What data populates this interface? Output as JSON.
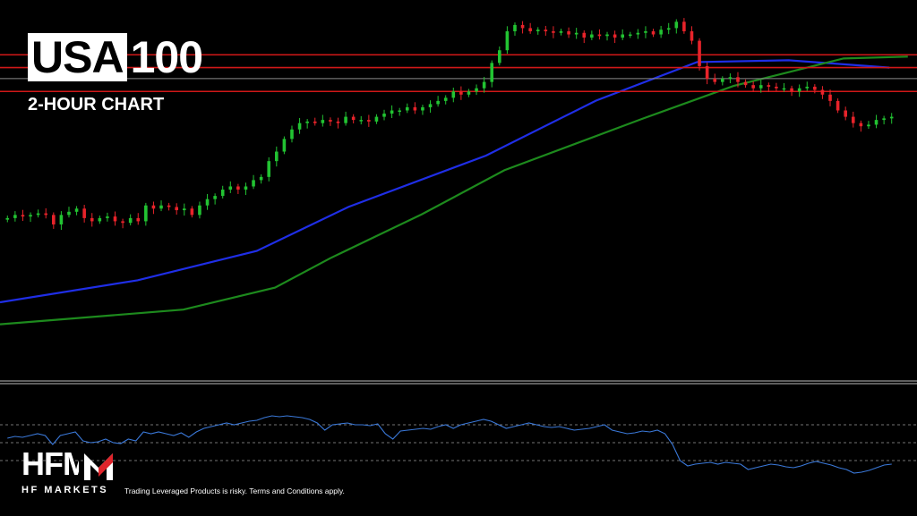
{
  "header": {
    "symbol_boxed": "USA",
    "symbol_rest": "100",
    "subtitle": "2-HOUR CHART"
  },
  "brand": {
    "logo_text": "HFM",
    "logo_sub": "HF MARKETS",
    "disclaimer": "Trading Leveraged Products is risky. Terms and Conditions apply.",
    "accent": "#e0242b"
  },
  "colors": {
    "background": "#000000",
    "bull": "#22c332",
    "bear": "#e8232a",
    "ma_fast": "#1f2ee6",
    "ma_slow": "#1d8a1d",
    "level_red": "#d01818",
    "level_gray": "#8a8a8a",
    "oscillator": "#3a78d8",
    "osc_dashed": "#9a9a9a",
    "separator": "#bdbdbd"
  },
  "chart_data": [
    {
      "type": "candlestick",
      "title": "USA100",
      "subtitle": "2-HOUR CHART",
      "y_range": [
        0,
        100
      ],
      "candles_close": [
        55,
        56,
        55.5,
        56,
        56.5,
        56,
        53,
        56,
        57,
        58,
        55,
        54,
        55,
        55.5,
        54,
        53.5,
        55,
        54,
        59,
        58,
        59,
        58.5,
        57.5,
        58,
        56,
        59,
        61,
        62,
        64,
        65,
        64,
        65,
        67,
        68,
        73,
        76,
        80,
        83,
        85,
        85.5,
        85,
        86,
        85.5,
        85,
        87,
        86,
        86,
        85.5,
        87,
        88,
        89,
        89,
        90,
        89,
        90,
        91,
        92,
        93,
        95,
        94,
        95,
        96,
        98,
        104,
        108,
        114,
        116,
        115,
        114,
        114.5,
        114,
        113.5,
        114,
        113,
        113.5,
        112,
        113,
        112.5,
        113,
        112,
        113,
        113,
        113.5,
        114,
        113,
        114.5,
        115,
        117,
        114,
        111,
        103,
        99,
        98,
        99,
        99.5,
        98,
        97,
        96,
        97,
        96.5,
        96,
        96,
        95,
        96,
        96.5,
        95.5,
        94,
        92,
        89,
        87,
        85,
        84,
        84.5,
        86,
        86.5,
        87
      ],
      "levels": [
        {
          "value": 87.5,
          "color": "red"
        },
        {
          "value": 84.0,
          "color": "red"
        },
        {
          "value": 81.0,
          "color": "gray"
        },
        {
          "value": 77.5,
          "color": "red"
        }
      ],
      "moving_averages": [
        {
          "color": "blue",
          "points": [
            [
              0,
              20
            ],
            [
              0.15,
              26
            ],
            [
              0.28,
              34
            ],
            [
              0.38,
              46
            ],
            [
              0.53,
              60
            ],
            [
              0.65,
              75
            ],
            [
              0.76,
              85.5
            ],
            [
              0.86,
              86
            ],
            [
              0.97,
              84
            ]
          ]
        },
        {
          "color": "green",
          "points": [
            [
              0,
              14
            ],
            [
              0.2,
              18
            ],
            [
              0.3,
              24
            ],
            [
              0.36,
              32
            ],
            [
              0.46,
              44
            ],
            [
              0.55,
              56
            ],
            [
              0.7,
              70
            ],
            [
              0.8,
              79
            ],
            [
              0.92,
              86.5
            ],
            [
              0.99,
              87
            ]
          ]
        }
      ]
    },
    {
      "type": "line",
      "title": "",
      "y_range": [
        0,
        100
      ],
      "levels": [
        70,
        50,
        30
      ],
      "values": [
        55,
        57,
        56,
        58,
        60,
        58,
        48,
        58,
        60,
        62,
        52,
        50,
        51,
        54,
        50,
        49,
        54,
        52,
        62,
        60,
        62,
        60,
        58,
        61,
        56,
        62,
        66,
        68,
        70,
        72,
        70,
        72,
        74,
        75,
        78,
        80,
        79,
        80,
        79,
        78,
        76,
        72,
        64,
        70,
        71,
        72,
        70,
        70,
        69,
        71,
        60,
        54,
        63,
        64,
        65,
        66,
        65,
        68,
        70,
        66,
        70,
        72,
        74,
        76,
        74,
        70,
        66,
        68,
        70,
        72,
        70,
        68,
        67,
        68,
        66,
        64,
        65,
        66,
        68,
        70,
        64,
        62,
        60,
        61,
        63,
        62,
        64,
        60,
        48,
        30,
        24,
        26,
        27,
        28,
        26,
        28,
        27,
        26,
        20,
        22,
        24,
        26,
        25,
        23,
        22,
        24,
        27,
        29,
        27,
        25,
        22,
        20,
        16,
        17,
        19,
        22,
        25,
        26
      ]
    }
  ]
}
